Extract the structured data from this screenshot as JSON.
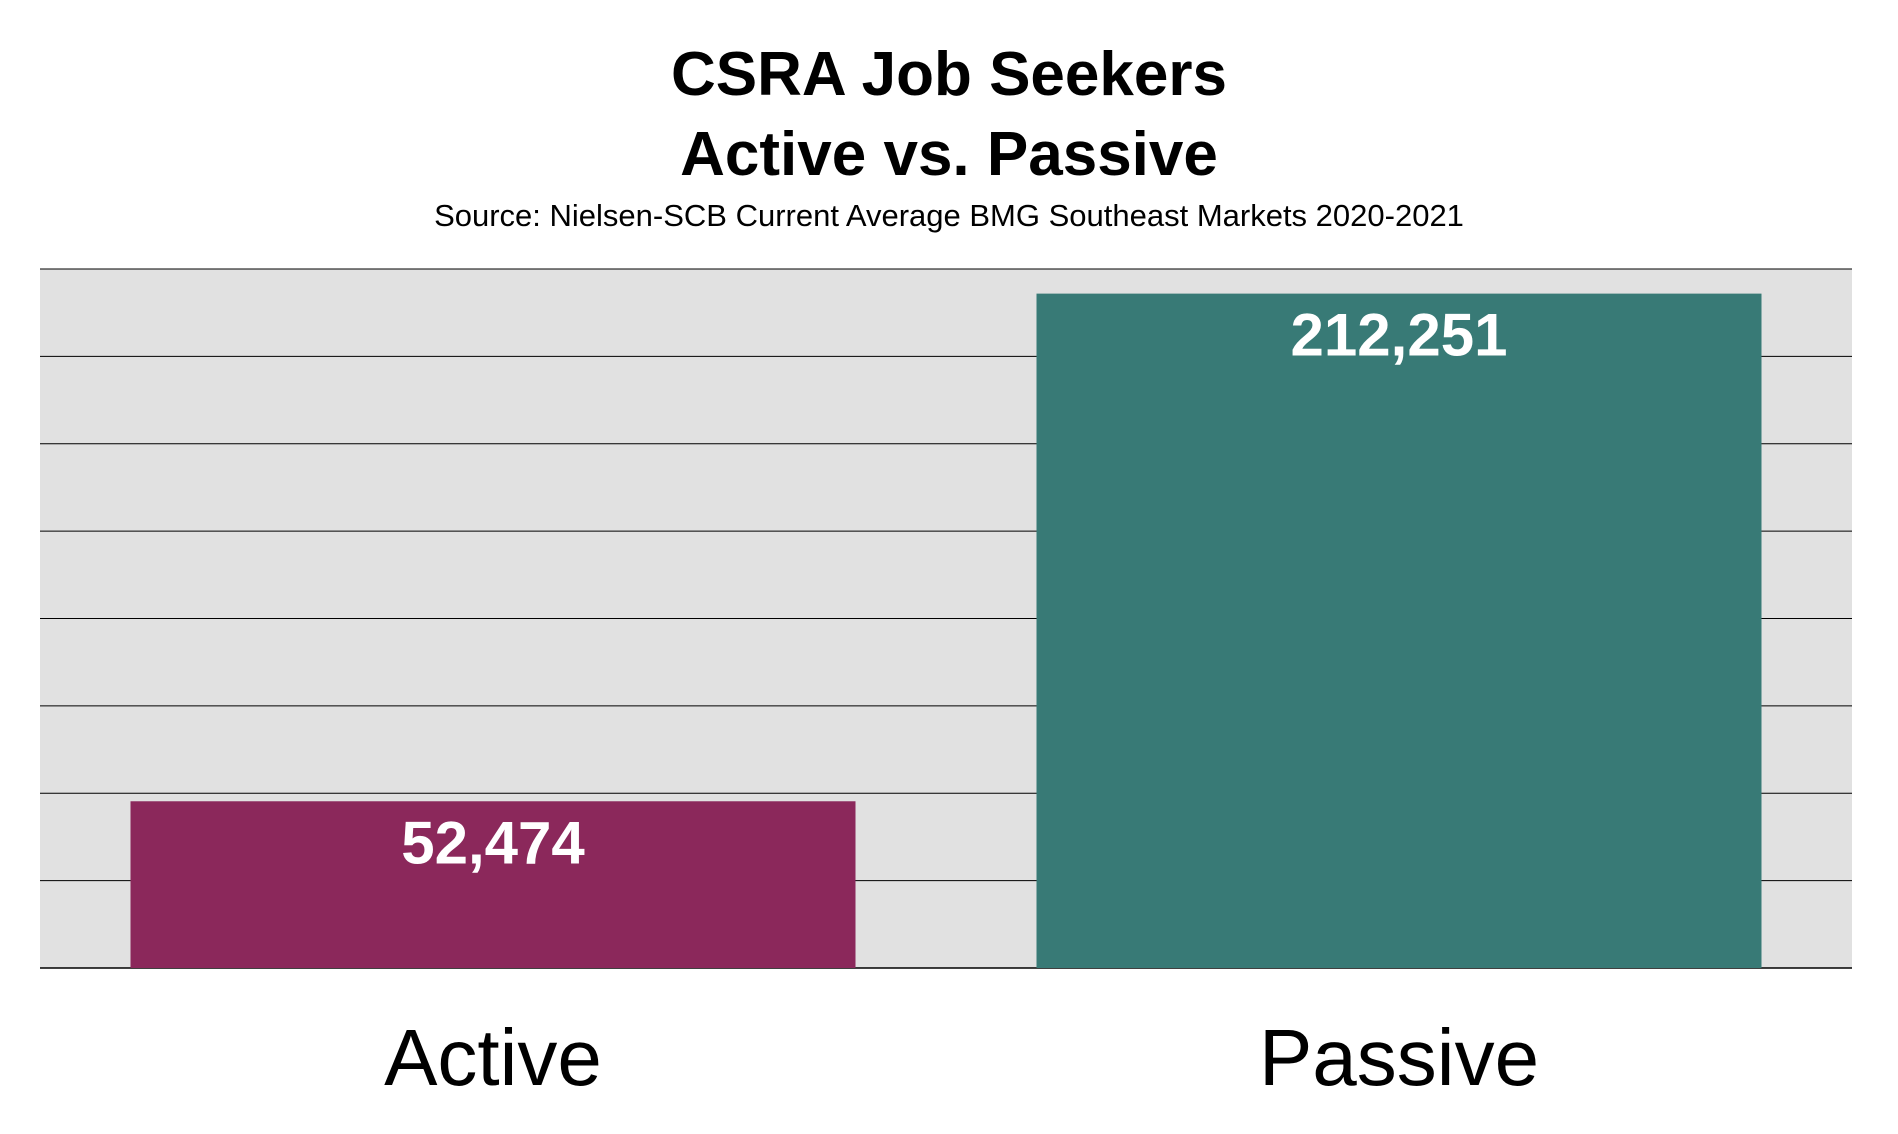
{
  "chart_data": {
    "type": "bar",
    "title": "CSRA Job Seekers",
    "subtitle_line": "Active vs. Passive",
    "source": "Source: Nielsen-SCB  Current Average BMG Southeast Markets 2020-2021",
    "categories": [
      "Active",
      "Passive"
    ],
    "values": [
      52474,
      212251
    ],
    "value_labels": [
      "52,474",
      "212,251"
    ],
    "colors": [
      "#8b285b",
      "#387a76"
    ],
    "ylim": [
      0,
      220000
    ],
    "grid": true,
    "gridline_count": 8,
    "plot_background": "#e1e1e1",
    "xlabel": "",
    "ylabel": ""
  }
}
